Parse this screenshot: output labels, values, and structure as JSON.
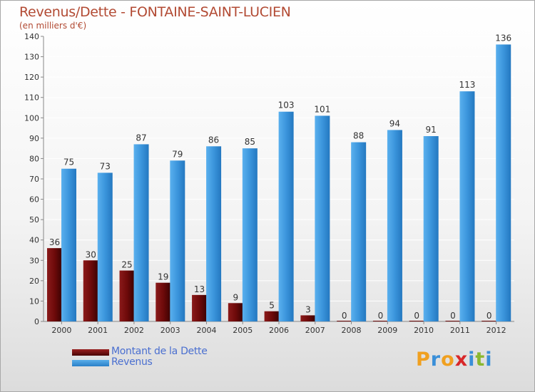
{
  "title": "Revenus/Dette - FONTAINE-SAINT-LUCIEN",
  "subtitle": "(en milliers d'€)",
  "legend": [
    {
      "label": "Montant de la Dette",
      "color": "#6e0a0a"
    },
    {
      "label": "Revenus",
      "color": "#3b95dc"
    }
  ],
  "logo": {
    "letters": [
      "P",
      "r",
      "o",
      "x",
      "i",
      "t",
      "i"
    ],
    "colors": [
      "#f0a020",
      "#3a8fd8",
      "#f0a020",
      "#d8282a",
      "#3a8fd8",
      "#8ab830",
      "#3a8fd8"
    ]
  },
  "chart_data": {
    "type": "bar",
    "categories": [
      "2000",
      "2001",
      "2002",
      "2003",
      "2004",
      "2005",
      "2006",
      "2007",
      "2008",
      "2009",
      "2010",
      "2011",
      "2012"
    ],
    "series": [
      {
        "name": "Montant de la Dette",
        "values": [
          36,
          30,
          25,
          19,
          13,
          9,
          5,
          3,
          0,
          0,
          0,
          0,
          0
        ],
        "color": "#6e0a0a"
      },
      {
        "name": "Revenus",
        "values": [
          75,
          73,
          87,
          79,
          86,
          85,
          103,
          101,
          88,
          94,
          91,
          113,
          136
        ],
        "color": "#3b95dc"
      }
    ],
    "ylim": [
      0,
      140
    ],
    "yticks": [
      0,
      10,
      20,
      30,
      40,
      50,
      60,
      70,
      80,
      90,
      100,
      110,
      120,
      130,
      140
    ],
    "grid": true,
    "legend_position": "bottom-left"
  }
}
